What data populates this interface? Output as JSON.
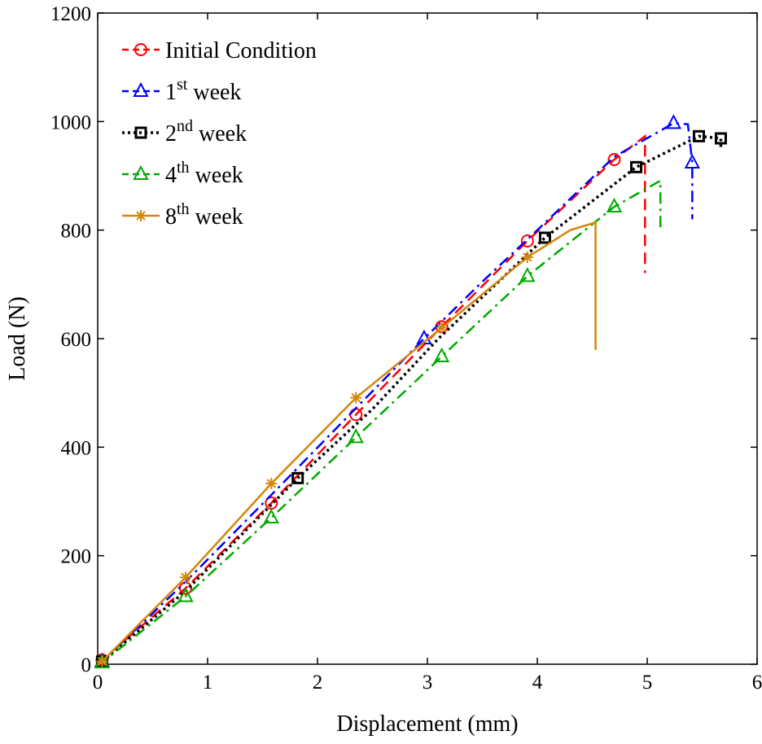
{
  "chart_data": {
    "type": "line",
    "title": "",
    "xlabel": "Displacement (mm)",
    "ylabel": "Load (N)",
    "xlim": [
      0,
      6
    ],
    "ylim": [
      0,
      1200
    ],
    "xticks": [
      0,
      1,
      2,
      3,
      4,
      5,
      6
    ],
    "yticks": [
      0,
      200,
      400,
      600,
      800,
      1000,
      1200
    ],
    "grid": false,
    "legend_position": "top-left",
    "series": [
      {
        "name": "Initial Condition",
        "name_base": "Initial Condition",
        "name_sup": "",
        "color": "#ff0000",
        "dash": "dashed",
        "marker": "circle",
        "points": [
          [
            0,
            0
          ],
          [
            0.04,
            8
          ],
          [
            0.8,
            140
          ],
          [
            1.58,
            297
          ],
          [
            2.35,
            460
          ],
          [
            3.13,
            622
          ],
          [
            3.91,
            780
          ],
          [
            4.7,
            930
          ],
          [
            4.98,
            973
          ],
          [
            4.98,
            721
          ]
        ],
        "markers": [
          [
            0.04,
            8
          ],
          [
            0.8,
            140
          ],
          [
            1.58,
            297
          ],
          [
            2.35,
            460
          ],
          [
            3.13,
            622
          ],
          [
            3.91,
            780
          ],
          [
            4.7,
            930
          ]
        ]
      },
      {
        "name": "1st week",
        "name_base": "1",
        "name_sup": "st",
        "name_rest": " week",
        "color": "#0000ff",
        "dash": "dashdot",
        "marker": "triangle",
        "points": [
          [
            0,
            0
          ],
          [
            0.04,
            5
          ],
          [
            0.8,
            152
          ],
          [
            1.58,
            312
          ],
          [
            2.35,
            472
          ],
          [
            2.97,
            600
          ],
          [
            3.5,
            705
          ],
          [
            4,
            800
          ],
          [
            4.7,
            935
          ],
          [
            5.24,
            997
          ],
          [
            5.37,
            995
          ],
          [
            5.41,
            924
          ],
          [
            5.41,
            820
          ]
        ],
        "markers": [
          [
            0.04,
            5
          ],
          [
            2.97,
            600
          ],
          [
            5.24,
            997
          ],
          [
            5.41,
            924
          ]
        ]
      },
      {
        "name": "2nd week",
        "name_base": "2",
        "name_sup": "nd",
        "name_rest": " week",
        "color": "#000000",
        "dash": "dotted",
        "marker": "square",
        "points": [
          [
            0,
            0
          ],
          [
            0.04,
            5
          ],
          [
            0.8,
            135
          ],
          [
            1.82,
            343
          ],
          [
            2.5,
            470
          ],
          [
            3.1,
            600
          ],
          [
            4.07,
            786
          ],
          [
            4.9,
            916
          ],
          [
            5.47,
            973
          ],
          [
            5.67,
            969
          ],
          [
            5.67,
            950
          ]
        ],
        "markers": [
          [
            0.04,
            5
          ],
          [
            1.82,
            343
          ],
          [
            4.07,
            786
          ],
          [
            4.9,
            916
          ],
          [
            5.47,
            973
          ],
          [
            5.67,
            969
          ]
        ]
      },
      {
        "name": "4th week",
        "name_base": "4",
        "name_sup": "th",
        "name_rest": " week",
        "color": "#00aa00",
        "dash": "dashdot",
        "marker": "triangle",
        "points": [
          [
            0,
            0
          ],
          [
            0.04,
            3
          ],
          [
            0.8,
            125
          ],
          [
            1.58,
            270
          ],
          [
            2.35,
            418
          ],
          [
            3.13,
            567
          ],
          [
            3.91,
            715
          ],
          [
            4.7,
            843
          ],
          [
            5.12,
            891
          ],
          [
            5.12,
            800
          ]
        ],
        "markers": [
          [
            0.04,
            3
          ],
          [
            0.8,
            125
          ],
          [
            1.58,
            270
          ],
          [
            2.35,
            418
          ],
          [
            3.13,
            567
          ],
          [
            3.91,
            715
          ],
          [
            4.7,
            843
          ]
        ]
      },
      {
        "name": "8th week",
        "name_base": "8",
        "name_sup": "th",
        "name_rest": " week",
        "color": "#d4860b",
        "dash": "solid",
        "marker": "asterisk",
        "points": [
          [
            0,
            0
          ],
          [
            0.04,
            5
          ],
          [
            0.8,
            160
          ],
          [
            1.58,
            333
          ],
          [
            2.35,
            491
          ],
          [
            3.13,
            620
          ],
          [
            3.91,
            750
          ],
          [
            4.3,
            800
          ],
          [
            4.53,
            814
          ],
          [
            4.53,
            579
          ]
        ],
        "markers": [
          [
            0.04,
            5
          ],
          [
            0.8,
            160
          ],
          [
            1.58,
            333
          ],
          [
            2.35,
            491
          ],
          [
            3.13,
            620
          ],
          [
            3.91,
            750
          ]
        ]
      }
    ]
  }
}
